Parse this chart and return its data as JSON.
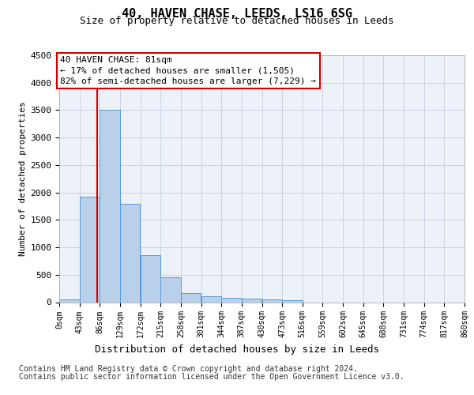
{
  "title_line1": "40, HAVEN CHASE, LEEDS, LS16 6SG",
  "title_line2": "Size of property relative to detached houses in Leeds",
  "xlabel": "Distribution of detached houses by size in Leeds",
  "ylabel": "Number of detached properties",
  "annotation_title": "40 HAVEN CHASE: 81sqm",
  "annotation_line2": "← 17% of detached houses are smaller (1,505)",
  "annotation_line3": "82% of semi-detached houses are larger (7,229) →",
  "vline_x": 81,
  "bin_edges": [
    0,
    43,
    86,
    129,
    172,
    215,
    258,
    301,
    344,
    387,
    430,
    473,
    516,
    559,
    602,
    645,
    688,
    731,
    774,
    817,
    860
  ],
  "bar_heights": [
    50,
    1920,
    3500,
    1790,
    850,
    460,
    165,
    105,
    80,
    60,
    55,
    40,
    0,
    0,
    0,
    0,
    0,
    0,
    0,
    0
  ],
  "bar_color": "#b8d0ea",
  "bar_edge_color": "#5b9bd5",
  "vline_color": "#cc0000",
  "annotation_box_color": "#cc0000",
  "grid_color": "#c8d4e4",
  "bg_color": "#edf2f8",
  "ylim_max": 4500,
  "yticks": [
    0,
    500,
    1000,
    1500,
    2000,
    2500,
    3000,
    3500,
    4000,
    4500
  ],
  "tick_labels": [
    "0sqm",
    "43sqm",
    "86sqm",
    "129sqm",
    "172sqm",
    "215sqm",
    "258sqm",
    "301sqm",
    "344sqm",
    "387sqm",
    "430sqm",
    "473sqm",
    "516sqm",
    "559sqm",
    "602sqm",
    "645sqm",
    "688sqm",
    "731sqm",
    "774sqm",
    "817sqm",
    "860sqm"
  ],
  "footnote1": "Contains HM Land Registry data © Crown copyright and database right 2024.",
  "footnote2": "Contains public sector information licensed under the Open Government Licence v3.0.",
  "title_fontsize": 11,
  "subtitle_fontsize": 9,
  "ylabel_fontsize": 8,
  "xlabel_fontsize": 9,
  "ytick_fontsize": 8,
  "xtick_fontsize": 7,
  "annot_fontsize": 8,
  "footnote_fontsize": 7
}
